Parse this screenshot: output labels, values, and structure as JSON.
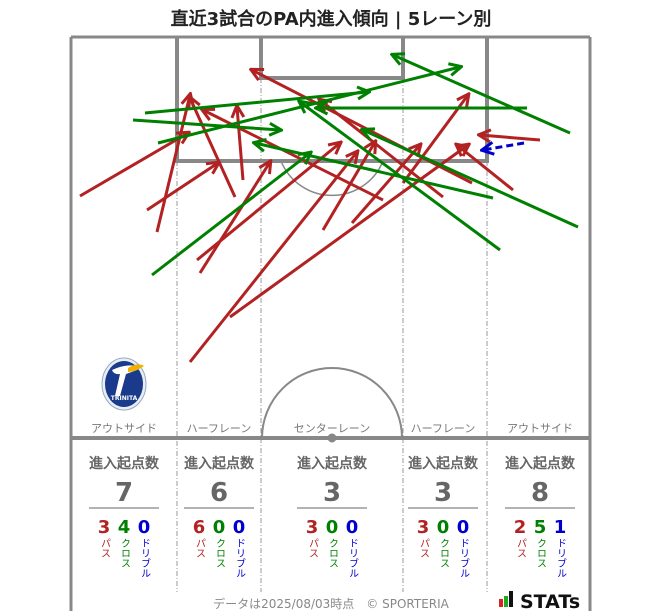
{
  "chart_data": {
    "type": "arrow-map",
    "title": "直近3試合のPA内進入傾向 | 5レーン別",
    "colors": {
      "pass": "#b22222",
      "cross": "#008000",
      "dribble": "#0000cc"
    },
    "lanes": [
      {
        "name": "アウトサイド",
        "header": "進入起点数",
        "total": "7",
        "pass": "3",
        "cross": "4",
        "dribble": "0"
      },
      {
        "name": "ハーフレーン",
        "header": "進入起点数",
        "total": "6",
        "pass": "6",
        "cross": "0",
        "dribble": "0"
      },
      {
        "name": "センターレーン",
        "header": "進入起点数",
        "total": "3",
        "pass": "3",
        "cross": "0",
        "dribble": "0"
      },
      {
        "name": "ハーフレーン",
        "header": "進入起点数",
        "total": "3",
        "pass": "3",
        "cross": "0",
        "dribble": "0"
      },
      {
        "name": "アウトサイド",
        "header": "進入起点数",
        "total": "8",
        "pass": "2",
        "cross": "5",
        "dribble": "1"
      }
    ],
    "labels": {
      "pass": "パス",
      "cross": "クロス",
      "dribble": "ドリブル"
    },
    "arrows": [
      {
        "type": "pass",
        "from": [
          80,
          196
        ],
        "to": [
          188,
          133
        ]
      },
      {
        "type": "pass",
        "from": [
          157,
          232
        ],
        "to": [
          190,
          95
        ]
      },
      {
        "type": "pass",
        "from": [
          147,
          210
        ],
        "to": [
          218,
          163
        ]
      },
      {
        "type": "pass",
        "from": [
          235,
          197
        ],
        "to": [
          190,
          98
        ]
      },
      {
        "type": "pass",
        "from": [
          243,
          180
        ],
        "to": [
          237,
          107
        ]
      },
      {
        "type": "pass",
        "from": [
          383,
          200
        ],
        "to": [
          203,
          110
        ]
      },
      {
        "type": "pass",
        "from": [
          200,
          273
        ],
        "to": [
          270,
          162
        ]
      },
      {
        "type": "pass",
        "from": [
          197,
          260
        ],
        "to": [
          340,
          143
        ]
      },
      {
        "type": "pass",
        "from": [
          323,
          230
        ],
        "to": [
          375,
          142
        ]
      },
      {
        "type": "pass",
        "from": [
          352,
          223
        ],
        "to": [
          420,
          145
        ]
      },
      {
        "type": "pass",
        "from": [
          190,
          362
        ],
        "to": [
          357,
          152
        ]
      },
      {
        "type": "pass",
        "from": [
          230,
          317
        ],
        "to": [
          468,
          145
        ]
      },
      {
        "type": "pass",
        "from": [
          403,
          183
        ],
        "to": [
          468,
          95
        ]
      },
      {
        "type": "pass",
        "from": [
          472,
          183
        ],
        "to": [
          252,
          70
        ]
      },
      {
        "type": "pass",
        "from": [
          443,
          197
        ],
        "to": [
          320,
          100
        ]
      },
      {
        "type": "pass",
        "from": [
          540,
          140
        ],
        "to": [
          480,
          135
        ]
      },
      {
        "type": "pass",
        "from": [
          513,
          190
        ],
        "to": [
          457,
          145
        ]
      },
      {
        "type": "cross",
        "from": [
          145,
          113
        ],
        "to": [
          368,
          92
        ]
      },
      {
        "type": "cross",
        "from": [
          133,
          120
        ],
        "to": [
          280,
          130
        ]
      },
      {
        "type": "cross",
        "from": [
          158,
          143
        ],
        "to": [
          460,
          67
        ]
      },
      {
        "type": "cross",
        "from": [
          527,
          108
        ],
        "to": [
          317,
          108
        ]
      },
      {
        "type": "cross",
        "from": [
          570,
          133
        ],
        "to": [
          393,
          55
        ]
      },
      {
        "type": "cross",
        "from": [
          493,
          198
        ],
        "to": [
          255,
          143
        ]
      },
      {
        "type": "cross",
        "from": [
          578,
          227
        ],
        "to": [
          363,
          130
        ]
      },
      {
        "type": "cross",
        "from": [
          500,
          250
        ],
        "to": [
          300,
          102
        ]
      },
      {
        "type": "cross",
        "from": [
          152,
          275
        ],
        "to": [
          310,
          153
        ]
      },
      {
        "type": "dribble",
        "from": [
          524,
          143
        ],
        "to": [
          483,
          150
        ]
      }
    ]
  },
  "footer": {
    "note": "データは2025/08/03時点　© SPORTERIA",
    "brand": "STATs"
  },
  "logo": {
    "text": "TRINITA"
  }
}
